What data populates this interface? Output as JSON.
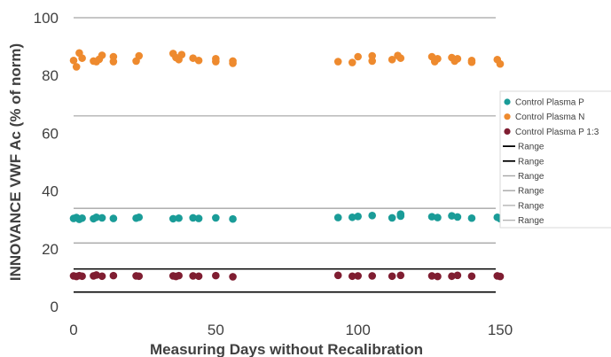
{
  "chart_data": {
    "type": "scatter",
    "xlabel": "Measuring Days without Recalibration",
    "ylabel": "INNOVANCE VWF Ac (% of norm)",
    "xlim": [
      0,
      150
    ],
    "ylim": [
      0,
      100
    ],
    "x_ticks": [
      "0",
      "50",
      "100",
      "150"
    ],
    "y_ticks": [
      "0",
      "20",
      "40",
      "60",
      "80",
      "100"
    ],
    "gridlines": false,
    "legend_position": "right",
    "series": [
      {
        "name": "Control Plasma P",
        "color": "#1a9c98",
        "points": [
          [
            0,
            30.5
          ],
          [
            1,
            30.8
          ],
          [
            2,
            30.2
          ],
          [
            3,
            30.6
          ],
          [
            7,
            30.4
          ],
          [
            8,
            30.9
          ],
          [
            10,
            30.7
          ],
          [
            14,
            30.5
          ],
          [
            22,
            30.6
          ],
          [
            23,
            30.9
          ],
          [
            35,
            30.4
          ],
          [
            37,
            30.6
          ],
          [
            42,
            30.7
          ],
          [
            44,
            30.5
          ],
          [
            50,
            30.7
          ],
          [
            56,
            30.3
          ],
          [
            93,
            30.8
          ],
          [
            98,
            30.9
          ],
          [
            100,
            31.2
          ],
          [
            105,
            31.5
          ],
          [
            112,
            30.7
          ],
          [
            115,
            31.3
          ],
          [
            115,
            32.0
          ],
          [
            126,
            31.1
          ],
          [
            128,
            30.8
          ],
          [
            133,
            31.4
          ],
          [
            135,
            31.0
          ],
          [
            140,
            30.6
          ],
          [
            149,
            30.9
          ],
          [
            150,
            30.4
          ]
        ]
      },
      {
        "name": "Control Plasma N",
        "color": "#ee8a2e",
        "points": [
          [
            0,
            85.2
          ],
          [
            1,
            83.0
          ],
          [
            2,
            87.8
          ],
          [
            3,
            86.0
          ],
          [
            7,
            85.0
          ],
          [
            8,
            84.8
          ],
          [
            9,
            85.6
          ],
          [
            10,
            87.0
          ],
          [
            14,
            86.5
          ],
          [
            14,
            84.8
          ],
          [
            22,
            85.0
          ],
          [
            23,
            86.8
          ],
          [
            35,
            87.6
          ],
          [
            36,
            86.2
          ],
          [
            37,
            85.5
          ],
          [
            38,
            87.2
          ],
          [
            42,
            86.0
          ],
          [
            44,
            85.2
          ],
          [
            50,
            85.8
          ],
          [
            50,
            84.8
          ],
          [
            56,
            85.0
          ],
          [
            56,
            84.2
          ],
          [
            93,
            84.8
          ],
          [
            98,
            84.5
          ],
          [
            100,
            86.5
          ],
          [
            105,
            85.0
          ],
          [
            105,
            86.8
          ],
          [
            112,
            85.5
          ],
          [
            114,
            86.9
          ],
          [
            115,
            86.0
          ],
          [
            126,
            86.5
          ],
          [
            127,
            84.8
          ],
          [
            128,
            85.8
          ],
          [
            133,
            86.2
          ],
          [
            134,
            85.0
          ],
          [
            135,
            85.8
          ],
          [
            140,
            85.2
          ],
          [
            140,
            84.6
          ],
          [
            149,
            85.5
          ],
          [
            150,
            84.0
          ]
        ]
      },
      {
        "name": "Control Plasma P 1:3",
        "color": "#7f1d31",
        "points": [
          [
            0,
            10.6
          ],
          [
            1,
            10.4
          ],
          [
            2,
            10.7
          ],
          [
            3,
            10.5
          ],
          [
            7,
            10.6
          ],
          [
            8,
            10.9
          ],
          [
            10,
            10.5
          ],
          [
            14,
            10.7
          ],
          [
            22,
            10.6
          ],
          [
            23,
            10.5
          ],
          [
            35,
            10.6
          ],
          [
            36,
            10.4
          ],
          [
            37,
            10.7
          ],
          [
            42,
            10.6
          ],
          [
            44,
            10.5
          ],
          [
            50,
            10.7
          ],
          [
            56,
            10.3
          ],
          [
            93,
            10.8
          ],
          [
            98,
            10.5
          ],
          [
            100,
            10.6
          ],
          [
            105,
            10.6
          ],
          [
            112,
            10.5
          ],
          [
            115,
            10.8
          ],
          [
            126,
            10.6
          ],
          [
            128,
            10.4
          ],
          [
            133,
            10.5
          ],
          [
            135,
            10.8
          ],
          [
            140,
            10.5
          ],
          [
            149,
            10.6
          ],
          [
            150,
            10.4
          ]
        ]
      }
    ],
    "range_lines": [
      {
        "name": "Range",
        "value": 5,
        "color": "#000000"
      },
      {
        "name": "Range",
        "value": 13,
        "color": "#000000"
      },
      {
        "name": "Range",
        "value": 22,
        "color": "#a6a6a6"
      },
      {
        "name": "Range",
        "value": 34,
        "color": "#a6a6a6"
      },
      {
        "name": "Range",
        "value": 66,
        "color": "#b3b3b3"
      },
      {
        "name": "Range",
        "value": 100,
        "color": "#b3b3b3"
      }
    ]
  }
}
